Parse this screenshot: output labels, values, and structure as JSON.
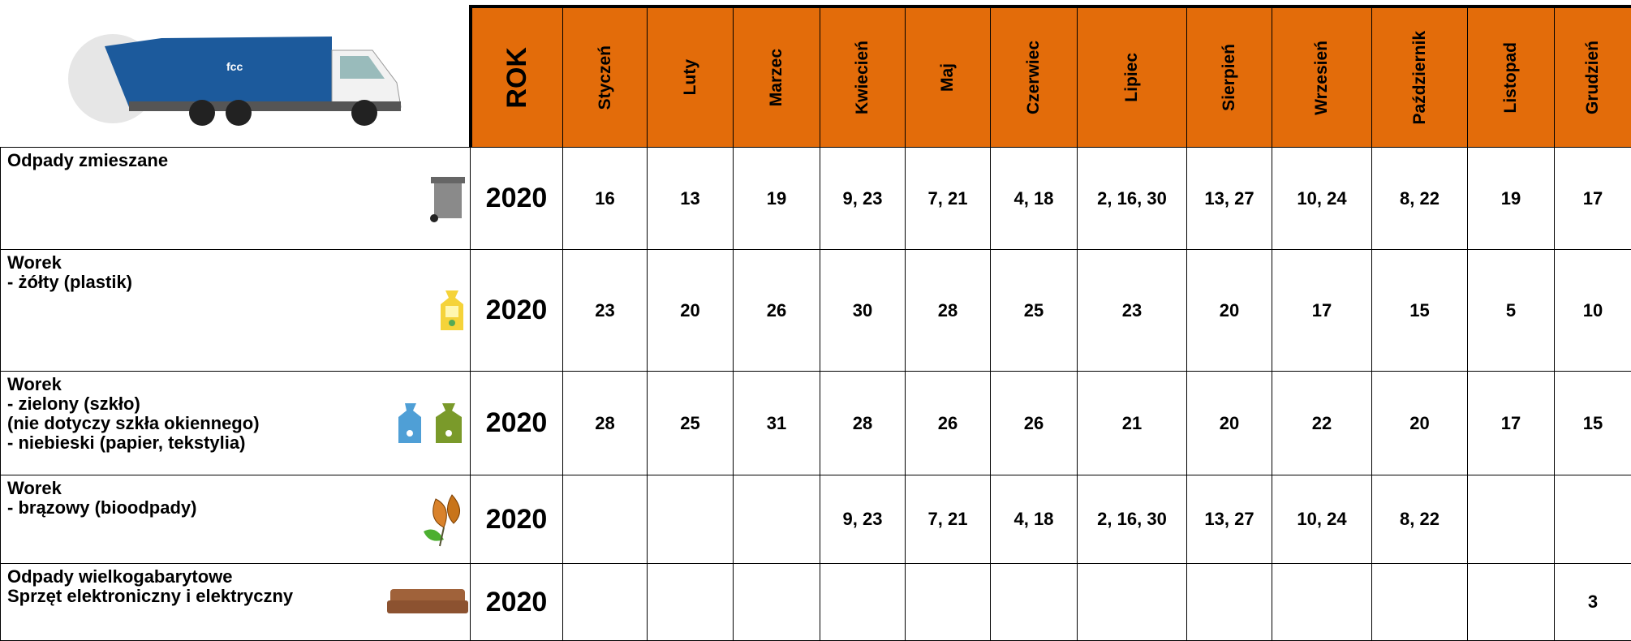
{
  "header": {
    "year_label": "ROK",
    "months": [
      "Styczeń",
      "Luty",
      "Marzec",
      "Kwiecień",
      "Maj",
      "Czerwiec",
      "Lipiec",
      "Sierpień",
      "Wrzesień",
      "Październik",
      "Listopad",
      "Grudzień"
    ]
  },
  "rows": [
    {
      "label": [
        "Odpady zmieszane"
      ],
      "icon": "bin",
      "year": "2020",
      "values": [
        "16",
        "13",
        "19",
        "9, 23",
        "7, 21",
        "4, 18",
        "2, 16, 30",
        "13, 27",
        "10, 24",
        "8, 22",
        "19",
        "17"
      ]
    },
    {
      "label": [
        "Worek",
        "- żółty (plastik)"
      ],
      "icon": "yellow",
      "year": "2020",
      "values": [
        "23",
        "20",
        "26",
        "30",
        "28",
        "25",
        "23",
        "20",
        "17",
        "15",
        "5",
        "10"
      ]
    },
    {
      "label": [
        "Worek",
        "- zielony (szkło)",
        "(nie dotyczy szkła okiennego)",
        "- niebieski (papier, tekstylia)"
      ],
      "icon": "bluegreen",
      "year": "2020",
      "values": [
        "28",
        "25",
        "31",
        "28",
        "26",
        "26",
        "21",
        "20",
        "22",
        "20",
        "17",
        "15"
      ]
    },
    {
      "label": [
        "Worek",
        "- brązowy (bioodpady)"
      ],
      "icon": "leaves",
      "year": "2020",
      "values": [
        null,
        null,
        null,
        "9, 23",
        "7, 21",
        "4, 18",
        "2, 16, 30",
        "13, 27",
        "10, 24",
        "8, 22",
        null,
        null
      ]
    },
    {
      "label": [
        "Odpady wielkogabarytowe",
        "Sprzęt elektroniczny i elektryczny"
      ],
      "icon": "sofa",
      "year": "2020",
      "values": [
        null,
        null,
        null,
        null,
        null,
        null,
        null,
        null,
        null,
        null,
        null,
        "3"
      ]
    }
  ]
}
